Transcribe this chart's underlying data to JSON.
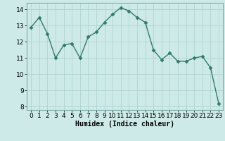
{
  "x": [
    0,
    1,
    2,
    3,
    4,
    5,
    6,
    7,
    8,
    9,
    10,
    11,
    12,
    13,
    14,
    15,
    16,
    17,
    18,
    19,
    20,
    21,
    22,
    23
  ],
  "y": [
    12.9,
    13.5,
    12.5,
    11.0,
    11.8,
    11.9,
    11.0,
    12.3,
    12.6,
    13.2,
    13.7,
    14.1,
    13.9,
    13.5,
    13.2,
    11.5,
    10.9,
    11.3,
    10.8,
    10.8,
    11.0,
    11.1,
    10.4,
    8.2
  ],
  "line_color": "#2e7b6e",
  "marker": "D",
  "bg_color": "#ceeae8",
  "grid_color": "#aed4d1",
  "xlabel": "Humidex (Indice chaleur)",
  "ylim": [
    7.8,
    14.4
  ],
  "xlim": [
    -0.5,
    23.5
  ],
  "yticks": [
    8,
    9,
    10,
    11,
    12,
    13,
    14
  ],
  "xticks": [
    0,
    1,
    2,
    3,
    4,
    5,
    6,
    7,
    8,
    9,
    10,
    11,
    12,
    13,
    14,
    15,
    16,
    17,
    18,
    19,
    20,
    21,
    22,
    23
  ],
  "xlabel_fontsize": 7,
  "tick_fontsize": 6.5,
  "linewidth": 1.0,
  "markersize": 2.5
}
